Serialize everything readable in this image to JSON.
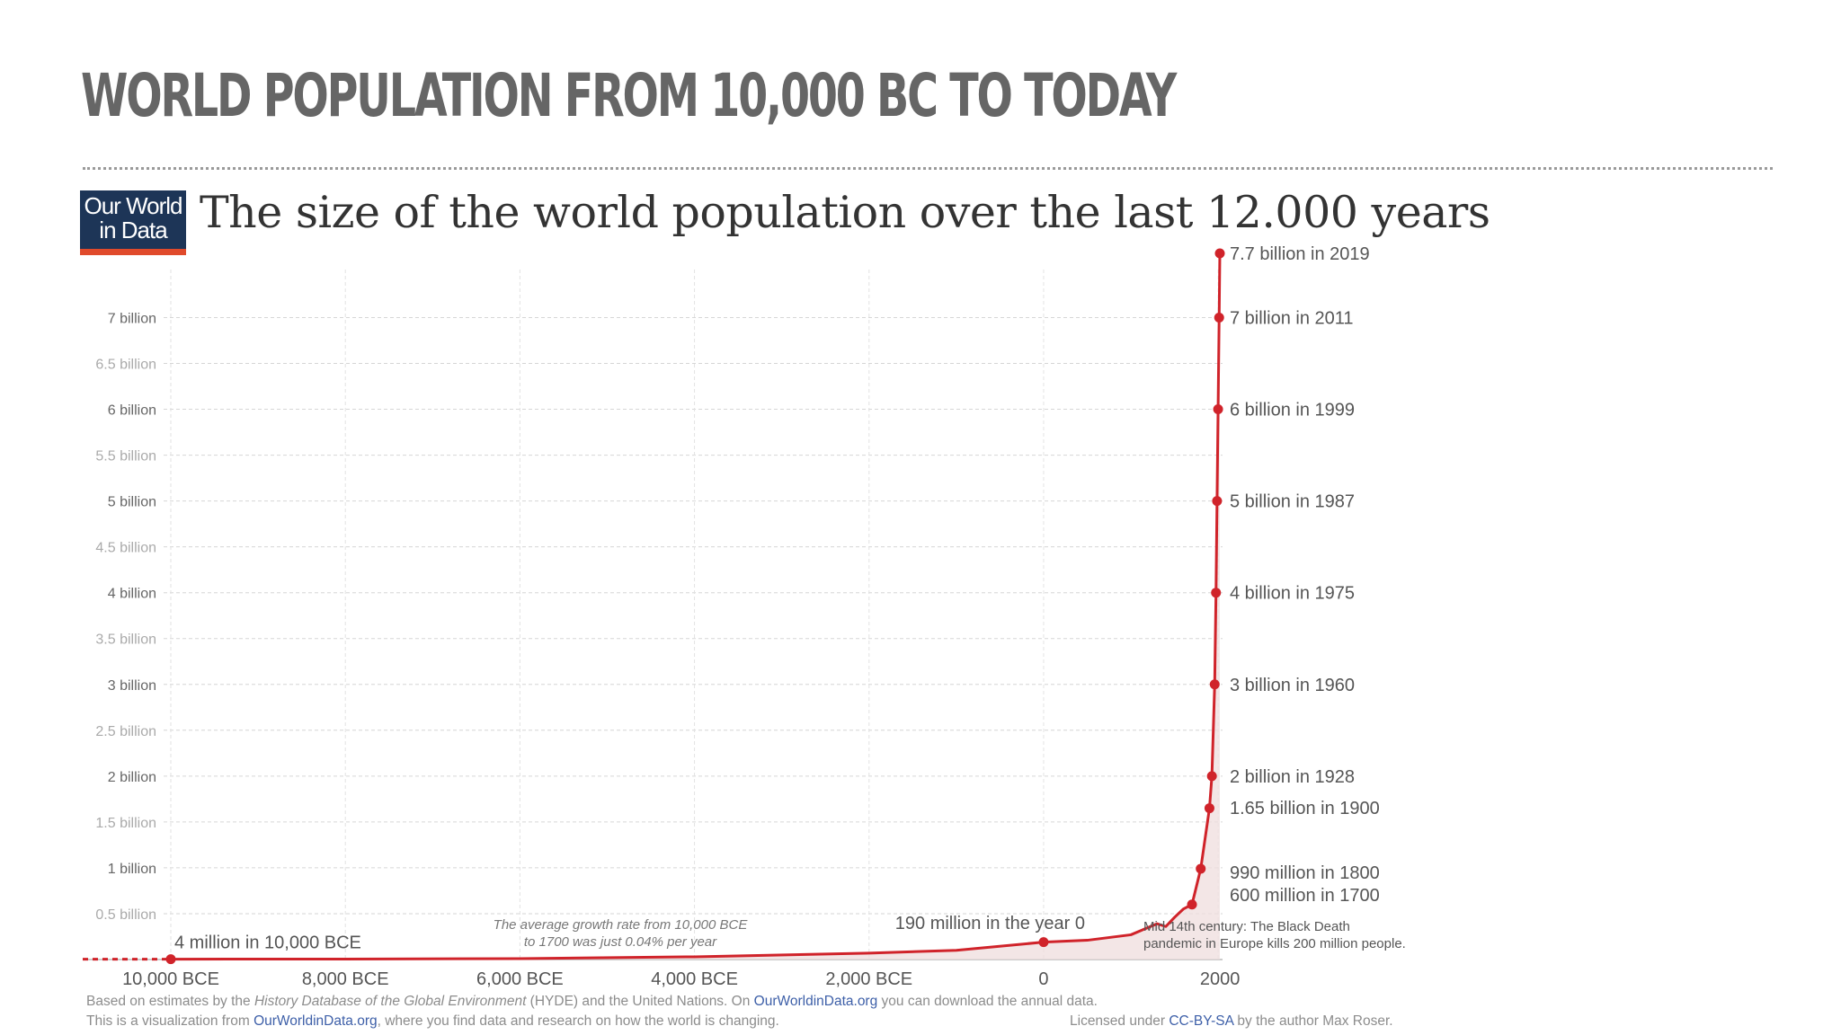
{
  "slide": {
    "title": "WORLD POPULATION FROM 10,000 BC TO TODAY"
  },
  "logo": {
    "line1": "Our World",
    "line2": "in Data",
    "bg_color": "#1d3557",
    "accent_color": "#e04a2b"
  },
  "chart_data": {
    "type": "line",
    "title": "The size of the world population over the last 12.000 years",
    "xlabel": "",
    "ylabel": "",
    "xlim": [
      -10000,
      2019
    ],
    "ylim": [
      0,
      7.7
    ],
    "x_ticks": [
      {
        "value": -10000,
        "label": "10,000 BCE"
      },
      {
        "value": -8000,
        "label": "8,000 BCE"
      },
      {
        "value": -6000,
        "label": "6,000 BCE"
      },
      {
        "value": -4000,
        "label": "4,000 BCE"
      },
      {
        "value": -2000,
        "label": "2,000 BCE"
      },
      {
        "value": 0,
        "label": "0"
      },
      {
        "value": 2000,
        "label": "2000"
      }
    ],
    "y_ticks": [
      {
        "value": 0.5,
        "label": "0.5 billion"
      },
      {
        "value": 1,
        "label": "1 billion"
      },
      {
        "value": 1.5,
        "label": "1.5 billion"
      },
      {
        "value": 2,
        "label": "2 billion"
      },
      {
        "value": 2.5,
        "label": "2.5 billion"
      },
      {
        "value": 3,
        "label": "3 billion"
      },
      {
        "value": 3.5,
        "label": "3.5  billion"
      },
      {
        "value": 4,
        "label": "4 billion"
      },
      {
        "value": 4.5,
        "label": "4.5 billion"
      },
      {
        "value": 5,
        "label": "5 billion"
      },
      {
        "value": 5.5,
        "label": "5.5 billion"
      },
      {
        "value": 6,
        "label": "6 billion"
      },
      {
        "value": 6.5,
        "label": "6.5 billion"
      },
      {
        "value": 7,
        "label": "7 billion"
      }
    ],
    "grid": true,
    "line_color": "#d0232a",
    "series": [
      {
        "values": [
          {
            "x": -10000,
            "y": 0.004
          },
          {
            "x": -8000,
            "y": 0.005
          },
          {
            "x": -6000,
            "y": 0.01
          },
          {
            "x": -4000,
            "y": 0.03
          },
          {
            "x": -2000,
            "y": 0.07
          },
          {
            "x": -1000,
            "y": 0.1
          },
          {
            "x": 0,
            "y": 0.19
          },
          {
            "x": 500,
            "y": 0.21
          },
          {
            "x": 1000,
            "y": 0.27
          },
          {
            "x": 1300,
            "y": 0.39
          },
          {
            "x": 1400,
            "y": 0.36
          },
          {
            "x": 1500,
            "y": 0.46
          },
          {
            "x": 1600,
            "y": 0.55
          },
          {
            "x": 1700,
            "y": 0.6
          },
          {
            "x": 1800,
            "y": 0.99
          },
          {
            "x": 1900,
            "y": 1.65
          },
          {
            "x": 1928,
            "y": 2
          },
          {
            "x": 1960,
            "y": 3
          },
          {
            "x": 1975,
            "y": 4
          },
          {
            "x": 1987,
            "y": 5
          },
          {
            "x": 1999,
            "y": 6
          },
          {
            "x": 2011,
            "y": 7
          },
          {
            "x": 2019,
            "y": 7.7
          }
        ]
      }
    ],
    "markers": [
      {
        "x": -10000,
        "y": 0.004,
        "label": "4 million in 10,000 BCE"
      },
      {
        "x": 0,
        "y": 0.19,
        "label": "190 million in the year 0"
      },
      {
        "x": 1700,
        "y": 0.6,
        "label": "600 million in 1700"
      },
      {
        "x": 1800,
        "y": 0.99,
        "label": "990 million in 1800"
      },
      {
        "x": 1900,
        "y": 1.65,
        "label": "1.65 billion in 1900"
      },
      {
        "x": 1928,
        "y": 2,
        "label": "2 billion in 1928"
      },
      {
        "x": 1960,
        "y": 3,
        "label": "3 billion in 1960"
      },
      {
        "x": 1975,
        "y": 4,
        "label": "4 billion in 1975"
      },
      {
        "x": 1987,
        "y": 5,
        "label": "5 billion in 1987"
      },
      {
        "x": 1999,
        "y": 6,
        "label": "6 billion in 1999"
      },
      {
        "x": 2011,
        "y": 7,
        "label": "7 billion in 2011"
      },
      {
        "x": 2019,
        "y": 7.7,
        "label": "7.7 billion in 2019"
      }
    ],
    "annotations": {
      "growth_rate_line1": "The average growth rate from 10,000 BCE",
      "growth_rate_line2": "to 1700 was just  0.04% per year",
      "black_death_line1": "Mid 14th century: The Black Death",
      "black_death_line2": "pandemic in Europe kills 200 million people."
    }
  },
  "footer": {
    "line1_a": "Based on estimates by the ",
    "line1_italic": "History Database of the Global Environment",
    "line1_b": " (HYDE) and the United Nations. On ",
    "line1_link": "OurWorldinData.org",
    "line1_c": " you can download the annual data.",
    "line2_a": "This is a visualization from ",
    "line2_link": "OurWorldinData.org",
    "line2_b": ", where you find data and research on how the world is changing.",
    "license_a": "Licensed under ",
    "license_link": "CC-BY-SA",
    "license_b": " by the author Max Roser."
  }
}
